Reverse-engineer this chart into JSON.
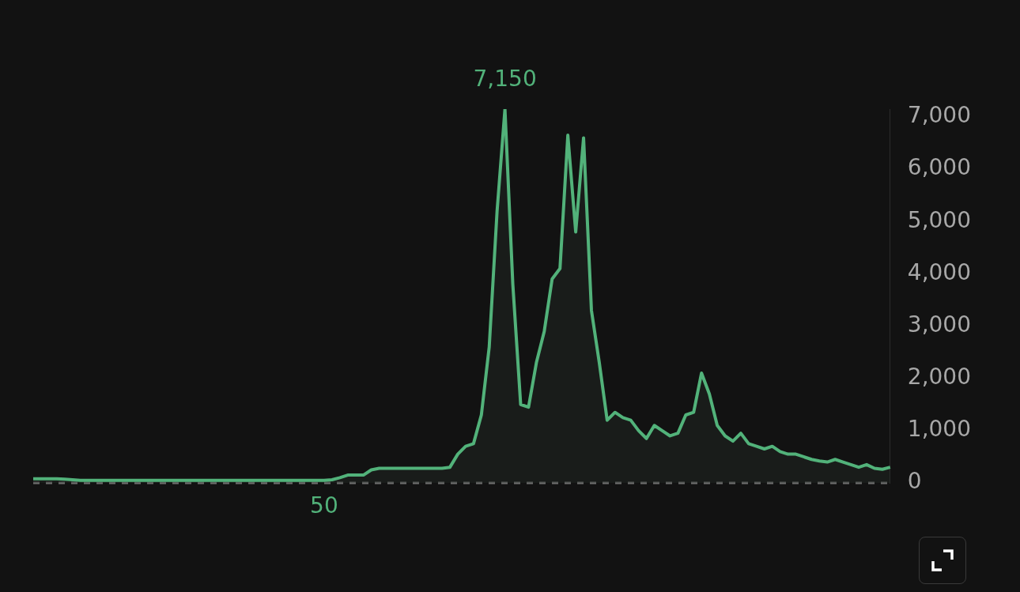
{
  "chart_data": {
    "type": "area",
    "categories": [
      null,
      null,
      null,
      null,
      null,
      null,
      null,
      null,
      null,
      null,
      null,
      null,
      null,
      null,
      null,
      null,
      null,
      null,
      null,
      null,
      null,
      null,
      null,
      null,
      null,
      null,
      null,
      null,
      null,
      null,
      null,
      null,
      null,
      null,
      null,
      null,
      null,
      null,
      null,
      null,
      null,
      null,
      null,
      null,
      null,
      null,
      null,
      null,
      null,
      null,
      null,
      null,
      null,
      null,
      null,
      null,
      null,
      null,
      null,
      null,
      null,
      null,
      null,
      null,
      null,
      null,
      null,
      null,
      null,
      null,
      null,
      null,
      null,
      null,
      null,
      null,
      null,
      null,
      null,
      null,
      null,
      null,
      null,
      null,
      null,
      null,
      null,
      null,
      null,
      null,
      null,
      null,
      null,
      null,
      null,
      null,
      null,
      null,
      null,
      null,
      null,
      null,
      null,
      null,
      null,
      null,
      null,
      null,
      null,
      null
    ],
    "series": [
      {
        "color": "#52b27a",
        "values": [
          80,
          80,
          80,
          80,
          70,
          60,
          50,
          50,
          50,
          50,
          50,
          50,
          50,
          50,
          50,
          50,
          50,
          50,
          50,
          50,
          50,
          50,
          50,
          50,
          50,
          50,
          50,
          50,
          50,
          50,
          50,
          50,
          50,
          50,
          50,
          50,
          50,
          50,
          60,
          100,
          150,
          150,
          150,
          250,
          280,
          280,
          280,
          280,
          280,
          280,
          280,
          280,
          280,
          300,
          550,
          700,
          750,
          1300,
          2600,
          5200,
          7150,
          3800,
          1500,
          1450,
          2300,
          2900,
          3900,
          4100,
          6650,
          4800,
          6600,
          3300,
          2300,
          1200,
          1350,
          1250,
          1200,
          1000,
          850,
          1100,
          1000,
          900,
          950,
          1300,
          1350,
          2100,
          1700,
          1100,
          900,
          800,
          950,
          750,
          700,
          650,
          700,
          600,
          550,
          550,
          500,
          450,
          420,
          400,
          450,
          400,
          350,
          300,
          350,
          280,
          260,
          300
        ],
        "value_labels": [
          null,
          null,
          null,
          null,
          null,
          null,
          null,
          null,
          null,
          null,
          null,
          null,
          null,
          null,
          null,
          null,
          null,
          null,
          null,
          null,
          null,
          null,
          null,
          null,
          null,
          null,
          null,
          null,
          null,
          null,
          null,
          null,
          null,
          null,
          null,
          null,
          null,
          "50",
          null,
          null,
          null,
          null,
          null,
          null,
          null,
          null,
          null,
          null,
          null,
          null,
          null,
          null,
          null,
          null,
          null,
          null,
          null,
          null,
          null,
          null,
          "7,150",
          null,
          null,
          null,
          null,
          null,
          null,
          null,
          null,
          null,
          null,
          null,
          null,
          null,
          null,
          null,
          null,
          null,
          null,
          null,
          null,
          null,
          null,
          null,
          null,
          null,
          null,
          null,
          null,
          null,
          null,
          null,
          null,
          null,
          null,
          null,
          null,
          null,
          null,
          null,
          null,
          null,
          null,
          null,
          null,
          null,
          null,
          null,
          null,
          null
        ]
      }
    ],
    "ylim": [
      0,
      7150
    ],
    "yticks": [
      0,
      {
        "value": 1000,
        "label": "1,000"
      },
      {
        "value": 2000,
        "label": "2,000"
      },
      {
        "value": 3000,
        "label": "3,000"
      },
      {
        "value": 4000,
        "label": "4,000"
      },
      {
        "value": 5000,
        "label": "5,000"
      },
      {
        "value": 6000,
        "label": "6,000"
      },
      {
        "value": 7000,
        "label": "7,000"
      }
    ],
    "tick_labels": "y",
    "grid": false,
    "legend": false,
    "marker": "none",
    "line_style": "solid",
    "ref_lines": [
      {
        "axis": "y",
        "value": 0,
        "color": "#6e6e6e",
        "line_style": "dashed"
      }
    ]
  }
}
